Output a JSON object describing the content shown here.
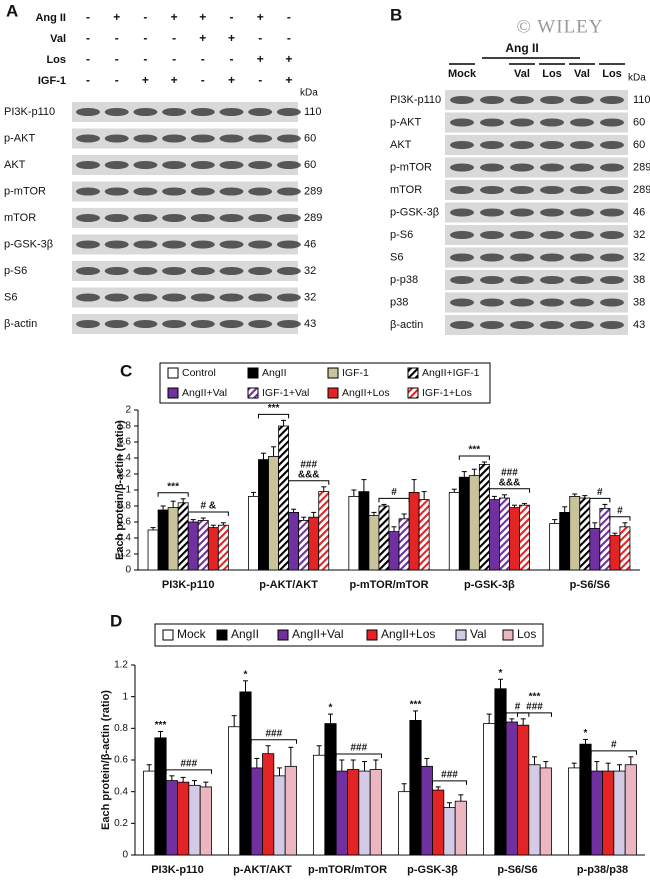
{
  "panel_a": {
    "label": "A",
    "treatments": [
      {
        "name": "Ang II",
        "signs": [
          "-",
          "+",
          "-",
          "+",
          "+",
          "-",
          "+",
          "-"
        ]
      },
      {
        "name": "Val",
        "signs": [
          "-",
          "-",
          "-",
          "-",
          "+",
          "+",
          "-",
          "-"
        ]
      },
      {
        "name": "Los",
        "signs": [
          "-",
          "-",
          "-",
          "-",
          "-",
          "-",
          "+",
          "+"
        ]
      },
      {
        "name": "IGF-1",
        "signs": [
          "-",
          "-",
          "+",
          "+",
          "-",
          "+",
          "-",
          "+"
        ]
      }
    ],
    "unit": "kDa",
    "rows": [
      {
        "protein": "PI3K-p110",
        "kda": 110
      },
      {
        "protein": "p-AKT",
        "kda": 60
      },
      {
        "protein": "AKT",
        "kda": 60
      },
      {
        "protein": "p-mTOR",
        "kda": 289
      },
      {
        "protein": "mTOR",
        "kda": 289
      },
      {
        "protein": "p-GSK-3β",
        "kda": 46
      },
      {
        "protein": "p-S6",
        "kda": 32
      },
      {
        "protein": "S6",
        "kda": 32
      },
      {
        "protein": "β-actin",
        "kda": 43
      }
    ]
  },
  "panel_b": {
    "label": "B",
    "watermark": "© WILEY",
    "group": "Ang II",
    "lanes": [
      "Mock",
      "Val",
      "Los",
      "Val",
      "Los"
    ],
    "unit": "kDa",
    "rows": [
      {
        "protein": "PI3K-p110",
        "kda": 110
      },
      {
        "protein": "p-AKT",
        "kda": 60
      },
      {
        "protein": "AKT",
        "kda": 60
      },
      {
        "protein": "p-mTOR",
        "kda": 289
      },
      {
        "protein": "mTOR",
        "kda": 289
      },
      {
        "protein": "p-GSK-3β",
        "kda": 46
      },
      {
        "protein": "p-S6",
        "kda": 32
      },
      {
        "protein": "S6",
        "kda": 32
      },
      {
        "protein": "p-p38",
        "kda": 38
      },
      {
        "protein": "p38",
        "kda": 38
      },
      {
        "protein": "β-actin",
        "kda": 43
      }
    ]
  },
  "chart_data": [
    {
      "type": "bar",
      "label": "C",
      "y_label": "Each protein/β-actin (ratio)",
      "categories": [
        "PI3K-p110",
        "p-AKT/AKT",
        "p-mTOR/mTOR",
        "p-GSK-3β",
        "p-S6/S6"
      ],
      "ylim": [
        0,
        2
      ],
      "yticks": [
        0,
        0.2,
        0.4,
        0.6,
        0.8,
        1,
        1.2,
        1.4,
        1.6,
        1.8,
        2
      ],
      "legend_columns": 4,
      "series": [
        {
          "name": "Control",
          "color": "#ffffff",
          "values": [
            0.5,
            0.92,
            0.92,
            0.97,
            0.58
          ],
          "errors": [
            0.03,
            0.05,
            0.08,
            0.04,
            0.05
          ]
        },
        {
          "name": "AngII",
          "color": "#000000",
          "values": [
            0.75,
            1.38,
            0.98,
            1.16,
            0.72
          ],
          "errors": [
            0.05,
            0.08,
            0.15,
            0.07,
            0.07
          ]
        },
        {
          "name": "IGF-1",
          "color": "#c9c39c",
          "values": [
            0.78,
            1.42,
            0.68,
            1.18,
            0.92
          ],
          "errors": [
            0.08,
            0.12,
            0.04,
            0.08,
            0.03
          ]
        },
        {
          "name": "AngII+IGF-1",
          "color": "#000000",
          "hatch": true,
          "values": [
            0.84,
            1.8,
            0.8,
            1.32,
            0.9
          ],
          "errors": [
            0.05,
            0.07,
            0.02,
            0.03,
            0.03
          ]
        },
        {
          "name": "AngII+Val",
          "color": "#7030a0",
          "values": [
            0.6,
            0.72,
            0.48,
            0.88,
            0.52
          ],
          "errors": [
            0.03,
            0.04,
            0.06,
            0.04,
            0.07
          ]
        },
        {
          "name": "IGF-1+Val",
          "color": "#7030a0",
          "hatch": true,
          "values": [
            0.62,
            0.62,
            0.64,
            0.9,
            0.77
          ],
          "errors": [
            0.03,
            0.04,
            0.06,
            0.04,
            0.05
          ]
        },
        {
          "name": "AngII+Los",
          "color": "#e32424",
          "values": [
            0.53,
            0.66,
            0.97,
            0.78,
            0.43
          ],
          "errors": [
            0.03,
            0.06,
            0.16,
            0.03,
            0.03
          ]
        },
        {
          "name": "IGF-1+Los",
          "color": "#e32424",
          "hatch": true,
          "values": [
            0.56,
            0.98,
            0.88,
            0.81,
            0.54
          ],
          "errors": [
            0.03,
            0.06,
            0.1,
            0.02,
            0.05
          ]
        }
      ],
      "annotations": [
        {
          "lines": [
            "***"
          ]
        },
        {
          "lines": [
            "# &"
          ]
        },
        {
          "lines": [
            "***"
          ]
        },
        {
          "lines": [
            "###",
            "&&&"
          ]
        },
        {
          "lines": [
            "#"
          ]
        },
        {
          "lines": [
            "***"
          ]
        },
        {
          "lines": [
            "###",
            "&&&"
          ]
        },
        {
          "lines": [
            "#"
          ]
        },
        {
          "lines": [
            "#"
          ]
        }
      ]
    },
    {
      "type": "bar",
      "label": "D",
      "y_label": "Each protein/β-actin (ratio)",
      "categories": [
        "PI3K-p110",
        "p-AKT/AKT",
        "p-mTOR/mTOR",
        "p-GSK-3β",
        "p-S6/S6",
        "p-p38/p38"
      ],
      "ylim": [
        0,
        1.2
      ],
      "yticks": [
        0,
        0.2,
        0.4,
        0.6,
        0.8,
        1,
        1.2
      ],
      "legend_columns": 6,
      "series": [
        {
          "name": "Mock",
          "color": "#ffffff",
          "values": [
            0.53,
            0.81,
            0.63,
            0.4,
            0.83,
            0.55
          ],
          "errors": [
            0.04,
            0.07,
            0.06,
            0.05,
            0.06,
            0.03
          ]
        },
        {
          "name": "AngII",
          "color": "#000000",
          "values": [
            0.74,
            1.03,
            0.83,
            0.85,
            1.05,
            0.7
          ],
          "errors": [
            0.04,
            0.07,
            0.06,
            0.06,
            0.06,
            0.03
          ]
        },
        {
          "name": "AngII+Val",
          "color": "#7030a0",
          "values": [
            0.47,
            0.55,
            0.53,
            0.56,
            0.84,
            0.53
          ],
          "errors": [
            0.03,
            0.06,
            0.07,
            0.05,
            0.02,
            0.06
          ]
        },
        {
          "name": "AngII+Los",
          "color": "#e32424",
          "values": [
            0.46,
            0.64,
            0.54,
            0.41,
            0.82,
            0.53
          ],
          "errors": [
            0.03,
            0.05,
            0.06,
            0.02,
            0.04,
            0.05
          ]
        },
        {
          "name": "Val",
          "color": "#d3cbe6",
          "values": [
            0.44,
            0.5,
            0.53,
            0.3,
            0.57,
            0.53
          ],
          "errors": [
            0.03,
            0.05,
            0.06,
            0.03,
            0.05,
            0.04
          ]
        },
        {
          "name": "Los",
          "color": "#ecb6c0",
          "values": [
            0.43,
            0.56,
            0.54,
            0.34,
            0.55,
            0.57
          ],
          "errors": [
            0.03,
            0.12,
            0.06,
            0.04,
            0.04,
            0.05
          ]
        }
      ],
      "annotations": [
        {
          "lines": [
            "***"
          ]
        },
        {
          "lines": [
            "###"
          ]
        },
        {
          "lines": [
            "*"
          ]
        },
        {
          "lines": [
            "###"
          ]
        },
        {
          "lines": [
            "*"
          ]
        },
        {
          "lines": [
            "###"
          ]
        },
        {
          "lines": [
            "***"
          ]
        },
        {
          "lines": [
            "###"
          ]
        },
        {
          "lines": [
            "*"
          ]
        },
        {
          "lines": [
            "#"
          ]
        },
        {
          "lines": [
            "***",
            "###"
          ]
        },
        {
          "lines": [
            "*"
          ]
        },
        {
          "lines": [
            "#"
          ]
        }
      ]
    }
  ]
}
